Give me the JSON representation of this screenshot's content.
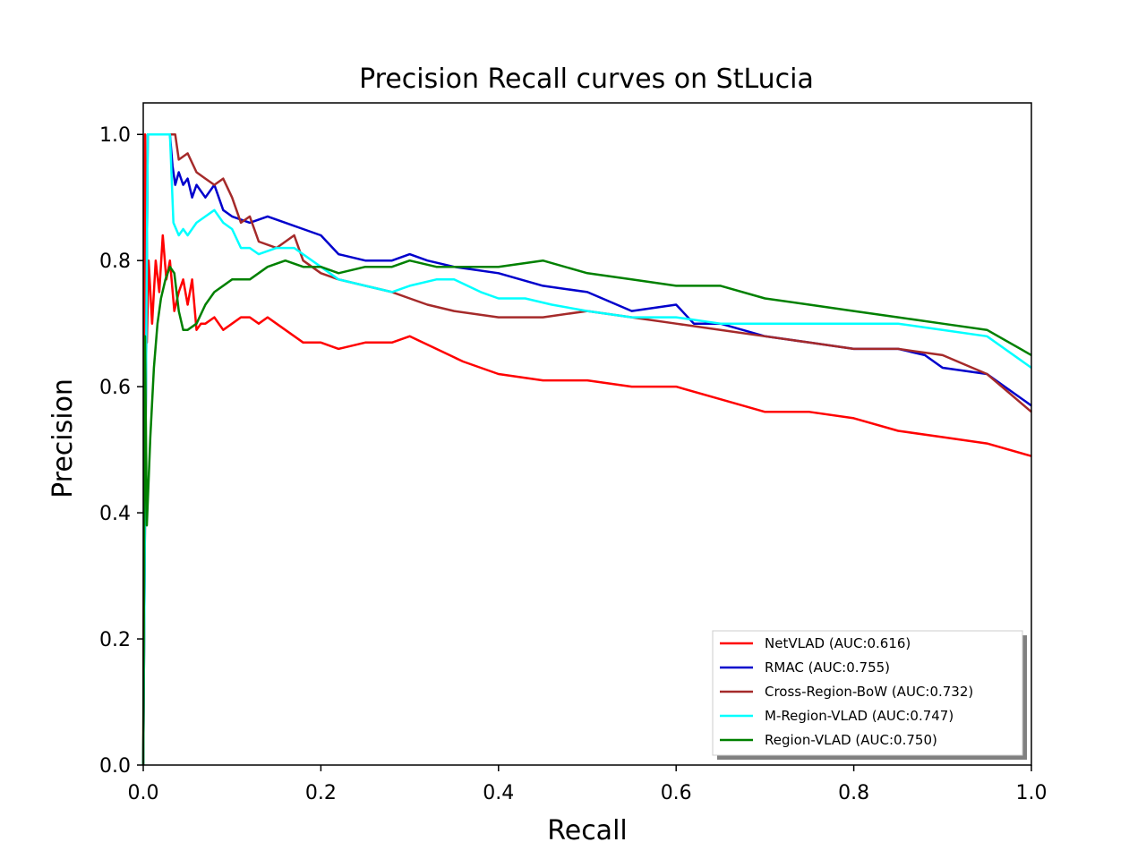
{
  "chart_data": {
    "type": "line",
    "title": "Precision Recall curves on StLucia",
    "xlabel": "Recall",
    "ylabel": "Precision",
    "xlim": [
      0.0,
      1.0
    ],
    "ylim": [
      0.0,
      1.05
    ],
    "xticks": [
      "0.0",
      "0.2",
      "0.4",
      "0.6",
      "0.8",
      "1.0"
    ],
    "yticks": [
      "0.0",
      "0.2",
      "0.4",
      "0.6",
      "0.8",
      "1.0"
    ],
    "grid": false,
    "legend_position": "lower-right",
    "series": [
      {
        "name": "NetVLAD (AUC:0.616)",
        "color": "#ff0000",
        "x": [
          0.0,
          0.002,
          0.004,
          0.006,
          0.01,
          0.014,
          0.018,
          0.022,
          0.026,
          0.03,
          0.035,
          0.04,
          0.045,
          0.05,
          0.055,
          0.06,
          0.065,
          0.07,
          0.08,
          0.09,
          0.1,
          0.11,
          0.12,
          0.13,
          0.14,
          0.15,
          0.16,
          0.18,
          0.2,
          0.22,
          0.25,
          0.28,
          0.3,
          0.33,
          0.36,
          0.4,
          0.45,
          0.5,
          0.55,
          0.6,
          0.65,
          0.7,
          0.75,
          0.8,
          0.85,
          0.9,
          0.95,
          1.0
        ],
        "y": [
          0.0,
          1.0,
          0.67,
          0.8,
          0.7,
          0.8,
          0.75,
          0.84,
          0.77,
          0.8,
          0.72,
          0.75,
          0.77,
          0.73,
          0.77,
          0.69,
          0.7,
          0.7,
          0.71,
          0.69,
          0.7,
          0.71,
          0.71,
          0.7,
          0.71,
          0.7,
          0.69,
          0.67,
          0.67,
          0.66,
          0.67,
          0.67,
          0.68,
          0.66,
          0.64,
          0.62,
          0.61,
          0.61,
          0.6,
          0.6,
          0.58,
          0.56,
          0.56,
          0.55,
          0.53,
          0.52,
          0.51,
          0.49
        ]
      },
      {
        "name": "RMAC (AUC:0.755)",
        "color": "#0000cc",
        "x": [
          0.0,
          0.005,
          0.01,
          0.02,
          0.03,
          0.033,
          0.036,
          0.04,
          0.045,
          0.05,
          0.055,
          0.06,
          0.07,
          0.08,
          0.09,
          0.1,
          0.12,
          0.14,
          0.16,
          0.18,
          0.2,
          0.22,
          0.25,
          0.28,
          0.3,
          0.32,
          0.35,
          0.4,
          0.45,
          0.5,
          0.55,
          0.6,
          0.62,
          0.65,
          0.7,
          0.75,
          0.8,
          0.85,
          0.88,
          0.9,
          0.95,
          1.0
        ],
        "y": [
          0.0,
          1.0,
          1.0,
          1.0,
          1.0,
          0.95,
          0.92,
          0.94,
          0.92,
          0.93,
          0.9,
          0.92,
          0.9,
          0.92,
          0.88,
          0.87,
          0.86,
          0.87,
          0.86,
          0.85,
          0.84,
          0.81,
          0.8,
          0.8,
          0.81,
          0.8,
          0.79,
          0.78,
          0.76,
          0.75,
          0.72,
          0.73,
          0.7,
          0.7,
          0.68,
          0.67,
          0.66,
          0.66,
          0.65,
          0.63,
          0.62,
          0.57
        ]
      },
      {
        "name": "Cross-Region-BoW (AUC:0.732)",
        "color": "#a52a2a",
        "x": [
          0.0,
          0.005,
          0.01,
          0.02,
          0.03,
          0.036,
          0.04,
          0.05,
          0.06,
          0.07,
          0.08,
          0.09,
          0.1,
          0.11,
          0.12,
          0.13,
          0.15,
          0.17,
          0.18,
          0.2,
          0.22,
          0.25,
          0.28,
          0.3,
          0.32,
          0.35,
          0.4,
          0.45,
          0.5,
          0.55,
          0.6,
          0.65,
          0.7,
          0.75,
          0.8,
          0.85,
          0.9,
          0.95,
          1.0
        ],
        "y": [
          0.0,
          1.0,
          1.0,
          1.0,
          1.0,
          1.0,
          0.96,
          0.97,
          0.94,
          0.93,
          0.92,
          0.93,
          0.9,
          0.86,
          0.87,
          0.83,
          0.82,
          0.84,
          0.8,
          0.78,
          0.77,
          0.76,
          0.75,
          0.74,
          0.73,
          0.72,
          0.71,
          0.71,
          0.72,
          0.71,
          0.7,
          0.69,
          0.68,
          0.67,
          0.66,
          0.66,
          0.65,
          0.62,
          0.56
        ]
      },
      {
        "name": "M-Region-VLAD (AUC:0.747)",
        "color": "#00ffff",
        "x": [
          0.0,
          0.005,
          0.01,
          0.02,
          0.03,
          0.034,
          0.04,
          0.045,
          0.05,
          0.06,
          0.07,
          0.08,
          0.09,
          0.1,
          0.11,
          0.12,
          0.13,
          0.15,
          0.17,
          0.2,
          0.22,
          0.25,
          0.28,
          0.3,
          0.33,
          0.35,
          0.38,
          0.4,
          0.43,
          0.46,
          0.5,
          0.55,
          0.6,
          0.65,
          0.7,
          0.75,
          0.8,
          0.85,
          0.9,
          0.95,
          1.0
        ],
        "y": [
          0.0,
          1.0,
          1.0,
          1.0,
          1.0,
          0.86,
          0.84,
          0.85,
          0.84,
          0.86,
          0.87,
          0.88,
          0.86,
          0.85,
          0.82,
          0.82,
          0.81,
          0.82,
          0.82,
          0.79,
          0.77,
          0.76,
          0.75,
          0.76,
          0.77,
          0.77,
          0.75,
          0.74,
          0.74,
          0.73,
          0.72,
          0.71,
          0.71,
          0.7,
          0.7,
          0.7,
          0.7,
          0.7,
          0.69,
          0.68,
          0.63
        ]
      },
      {
        "name": "Region-VLAD (AUC:0.750)",
        "color": "#008000",
        "x": [
          0.0,
          0.002,
          0.004,
          0.008,
          0.012,
          0.016,
          0.02,
          0.025,
          0.03,
          0.035,
          0.04,
          0.045,
          0.05,
          0.06,
          0.07,
          0.08,
          0.1,
          0.12,
          0.14,
          0.16,
          0.18,
          0.2,
          0.22,
          0.25,
          0.28,
          0.3,
          0.33,
          0.36,
          0.4,
          0.45,
          0.5,
          0.55,
          0.6,
          0.65,
          0.7,
          0.75,
          0.8,
          0.85,
          0.9,
          0.95,
          1.0
        ],
        "y": [
          0.0,
          0.68,
          0.38,
          0.52,
          0.63,
          0.7,
          0.74,
          0.77,
          0.79,
          0.78,
          0.72,
          0.69,
          0.69,
          0.7,
          0.73,
          0.75,
          0.77,
          0.77,
          0.79,
          0.8,
          0.79,
          0.79,
          0.78,
          0.79,
          0.79,
          0.8,
          0.79,
          0.79,
          0.79,
          0.8,
          0.78,
          0.77,
          0.76,
          0.76,
          0.74,
          0.73,
          0.72,
          0.71,
          0.7,
          0.69,
          0.65
        ]
      }
    ]
  }
}
